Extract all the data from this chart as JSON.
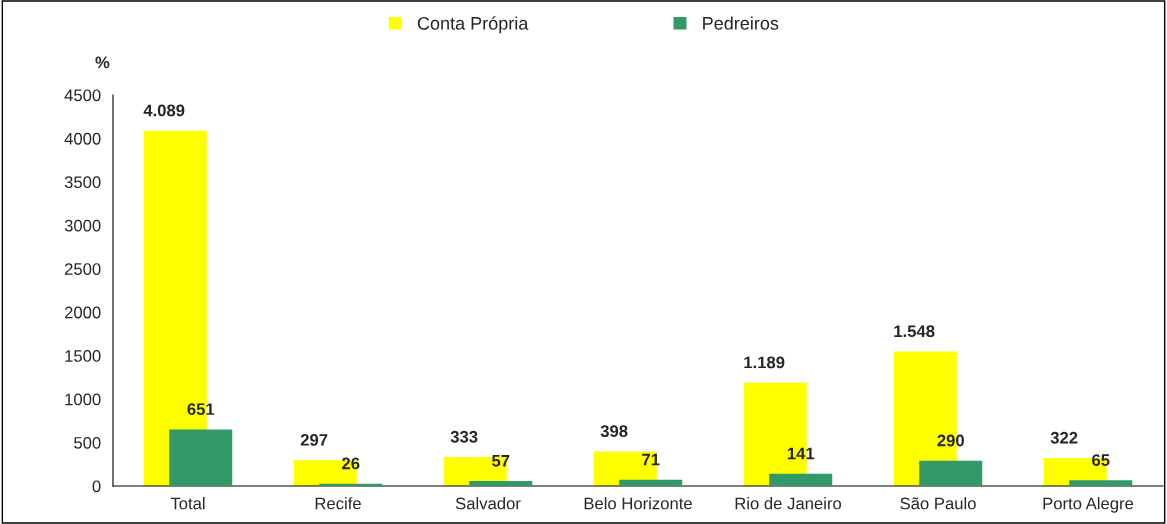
{
  "chart_data": {
    "type": "bar",
    "ylabel": "%",
    "categories": [
      "Total",
      "Recife",
      "Salvador",
      "Belo Horizonte",
      "Rio de Janeiro",
      "São Paulo",
      "Porto Alegre"
    ],
    "series": [
      {
        "name": "Conta Própria",
        "color": "#ffff00",
        "values": [
          4089,
          297,
          333,
          398,
          1189,
          1548,
          322
        ],
        "value_labels": [
          "4.089",
          "297",
          "333",
          "398",
          "1.189",
          "1.548",
          "322"
        ]
      },
      {
        "name": "Pedreiros",
        "color": "#339966",
        "values": [
          651,
          26,
          57,
          71,
          141,
          290,
          65
        ],
        "value_labels": [
          "651",
          "26",
          "57",
          "71",
          "141",
          "290",
          "65"
        ]
      }
    ],
    "ylim": [
      0,
      4500
    ],
    "yticks": [
      0,
      500,
      1000,
      1500,
      2000,
      2500,
      3000,
      3500,
      4000,
      4500
    ],
    "grid": false,
    "legend": "top"
  }
}
